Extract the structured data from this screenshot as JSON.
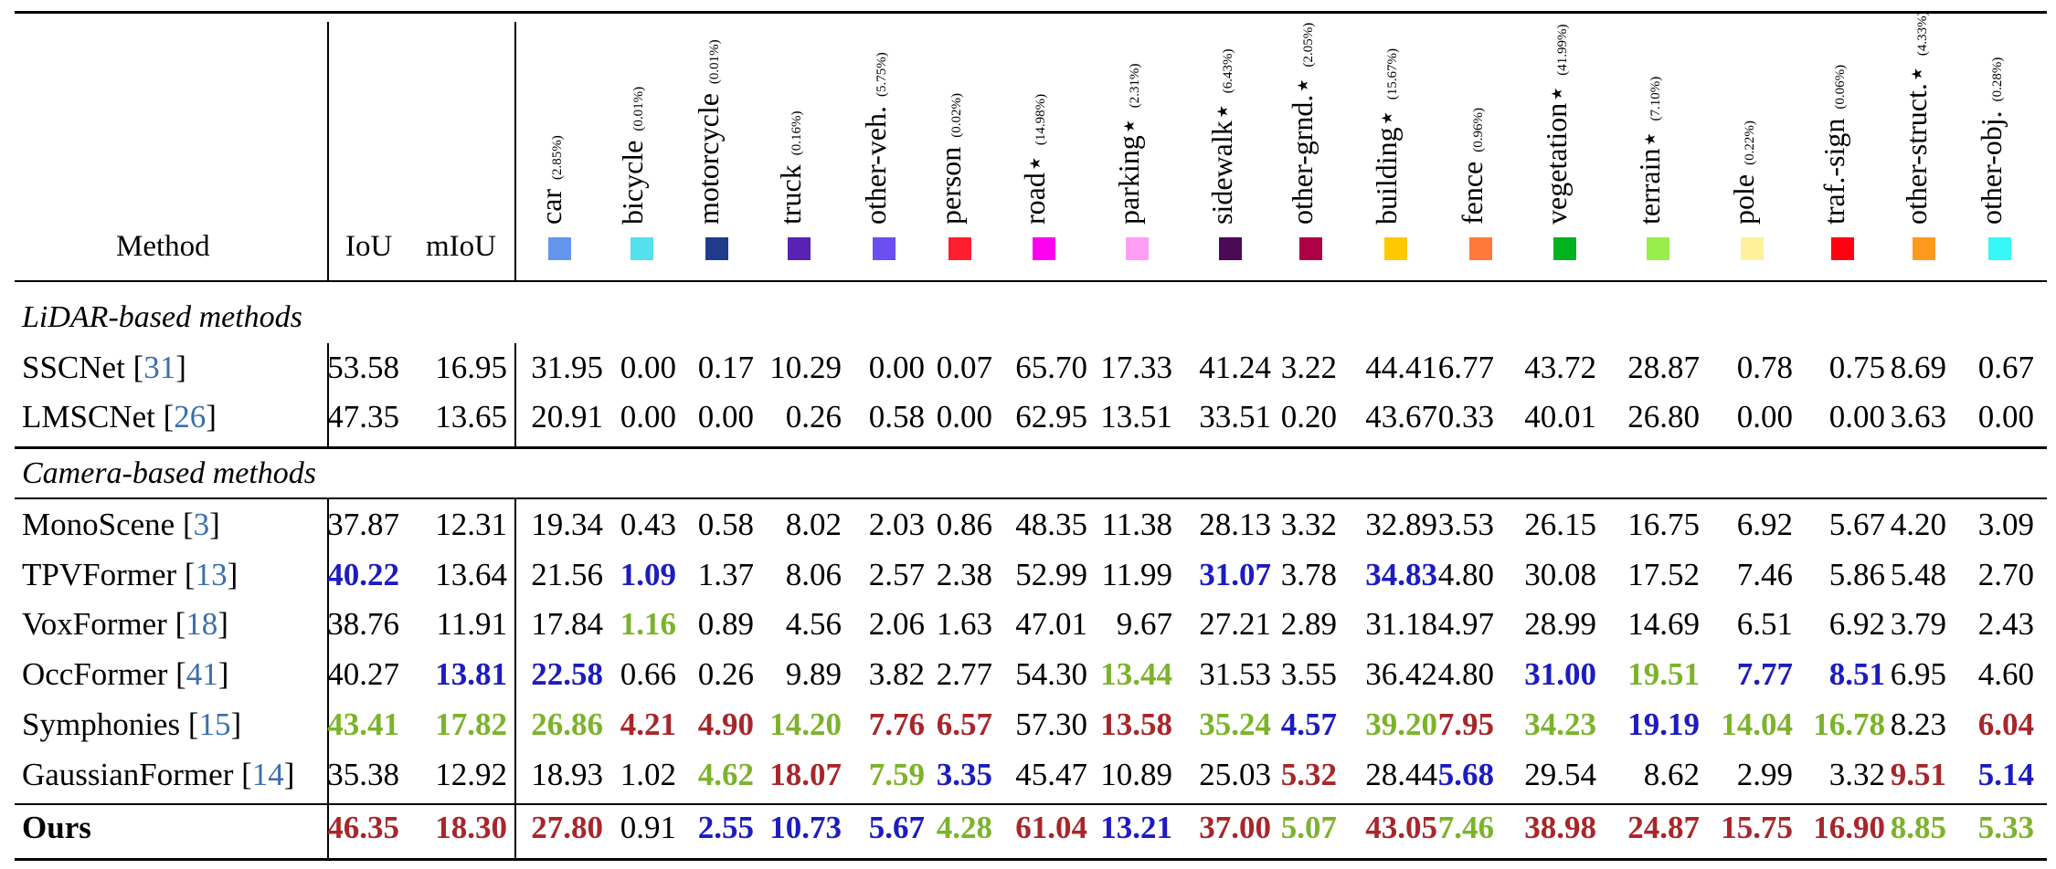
{
  "header": {
    "method": "Method",
    "iou": "IoU",
    "miou": "mIoU"
  },
  "classes": [
    {
      "name": "car",
      "freq": "(2.85%)",
      "color": "#6495ed"
    },
    {
      "name": "bicycle",
      "freq": "(0.01%)",
      "color": "#55e0ee"
    },
    {
      "name": "motorcycle",
      "freq": "(0.01%)",
      "color": "#1f3c8c"
    },
    {
      "name": "truck",
      "freq": "(0.16%)",
      "color": "#5a22b4"
    },
    {
      "name": "other-veh.",
      "freq": "(5.75%)",
      "color": "#6a4ef0"
    },
    {
      "name": "person",
      "freq": "(0.02%)",
      "color": "#ff1e2e"
    },
    {
      "name": "road⋆",
      "freq": "(14.98%)",
      "color": "#ff00f0"
    },
    {
      "name": "parking⋆",
      "freq": "(2.31%)",
      "color": "#ff9ef4"
    },
    {
      "name": "sidewalk⋆",
      "freq": "(6.43%)",
      "color": "#4b0a55"
    },
    {
      "name": "other-grnd.⋆",
      "freq": "(2.05%)",
      "color": "#ae0044"
    },
    {
      "name": "building⋆",
      "freq": "(15.67%)",
      "color": "#ffc800"
    },
    {
      "name": "fence",
      "freq": "(0.96%)",
      "color": "#ff7a3a"
    },
    {
      "name": "vegetation⋆",
      "freq": "(41.99%)",
      "color": "#00b21e"
    },
    {
      "name": "terrain⋆",
      "freq": "(7.10%)",
      "color": "#97ee4c"
    },
    {
      "name": "pole",
      "freq": "(0.22%)",
      "color": "#fff09a"
    },
    {
      "name": "traf.-sign",
      "freq": "(0.06%)",
      "color": "#ff0010"
    },
    {
      "name": "other-struct.⋆",
      "freq": "(4.33%)",
      "color": "#ff9a1e"
    },
    {
      "name": "other-obj.",
      "freq": "(0.28%)",
      "color": "#36f8f6"
    }
  ],
  "sections": [
    {
      "title": "LiDAR-based methods",
      "rows": [
        {
          "name": "SSCNet",
          "ref": "31",
          "bold": false,
          "values": [
            "53.58",
            "16.95",
            "31.95",
            "0.00",
            "0.17",
            "10.29",
            "0.00",
            "0.07",
            "65.70",
            "17.33",
            "41.24",
            "3.22",
            "44.41",
            "6.77",
            "43.72",
            "28.87",
            "0.78",
            "0.75",
            "8.69",
            "0.67"
          ],
          "ranks": [
            "",
            "",
            "",
            "",
            "",
            "",
            "",
            "",
            "",
            "",
            "",
            "",
            "",
            "",
            "",
            "",
            "",
            "",
            "",
            ""
          ]
        },
        {
          "name": "LMSCNet",
          "ref": "26",
          "bold": false,
          "values": [
            "47.35",
            "13.65",
            "20.91",
            "0.00",
            "0.00",
            "0.26",
            "0.58",
            "0.00",
            "62.95",
            "13.51",
            "33.51",
            "0.20",
            "43.67",
            "0.33",
            "40.01",
            "26.80",
            "0.00",
            "0.00",
            "3.63",
            "0.00"
          ],
          "ranks": [
            "",
            "",
            "",
            "",
            "",
            "",
            "",
            "",
            "",
            "",
            "",
            "",
            "",
            "",
            "",
            "",
            "",
            "",
            "",
            ""
          ]
        }
      ]
    },
    {
      "title": "Camera-based methods",
      "rows": [
        {
          "name": "MonoScene",
          "ref": "3",
          "bold": false,
          "values": [
            "37.87",
            "12.31",
            "19.34",
            "0.43",
            "0.58",
            "8.02",
            "2.03",
            "0.86",
            "48.35",
            "11.38",
            "28.13",
            "3.32",
            "32.89",
            "3.53",
            "26.15",
            "16.75",
            "6.92",
            "5.67",
            "4.20",
            "3.09"
          ],
          "ranks": [
            "",
            "",
            "",
            "",
            "",
            "",
            "",
            "",
            "",
            "",
            "",
            "",
            "",
            "",
            "",
            "",
            "",
            "",
            "",
            ""
          ]
        },
        {
          "name": "TPVFormer",
          "ref": "13",
          "bold": false,
          "values": [
            "40.22",
            "13.64",
            "21.56",
            "1.09",
            "1.37",
            "8.06",
            "2.57",
            "2.38",
            "52.99",
            "11.99",
            "31.07",
            "3.78",
            "34.83",
            "4.80",
            "30.08",
            "17.52",
            "7.46",
            "5.86",
            "5.48",
            "2.70"
          ],
          "ranks": [
            "blue",
            "",
            "",
            "blue",
            "",
            "",
            "",
            "",
            "",
            "",
            "blue",
            "",
            "blue",
            "",
            "",
            "",
            "",
            "",
            "",
            ""
          ]
        },
        {
          "name": "VoxFormer",
          "ref": "18",
          "bold": false,
          "values": [
            "38.76",
            "11.91",
            "17.84",
            "1.16",
            "0.89",
            "4.56",
            "2.06",
            "1.63",
            "47.01",
            "9.67",
            "27.21",
            "2.89",
            "31.18",
            "4.97",
            "28.99",
            "14.69",
            "6.51",
            "6.92",
            "3.79",
            "2.43"
          ],
          "ranks": [
            "",
            "",
            "",
            "green",
            "",
            "",
            "",
            "",
            "",
            "",
            "",
            "",
            "",
            "",
            "",
            "",
            "",
            "",
            "",
            ""
          ]
        },
        {
          "name": "OccFormer",
          "ref": "41",
          "bold": false,
          "values": [
            "40.27",
            "13.81",
            "22.58",
            "0.66",
            "0.26",
            "9.89",
            "3.82",
            "2.77",
            "54.30",
            "13.44",
            "31.53",
            "3.55",
            "36.42",
            "4.80",
            "31.00",
            "19.51",
            "7.77",
            "8.51",
            "6.95",
            "4.60"
          ],
          "ranks": [
            "",
            "blue",
            "blue",
            "",
            "",
            "",
            "",
            "",
            "",
            "green",
            "",
            "",
            "",
            "",
            "blue",
            "green",
            "blue",
            "blue",
            "",
            ""
          ]
        },
        {
          "name": "Symphonies",
          "ref": "15",
          "bold": false,
          "values": [
            "43.41",
            "17.82",
            "26.86",
            "4.21",
            "4.90",
            "14.20",
            "7.76",
            "6.57",
            "57.30",
            "13.58",
            "35.24",
            "4.57",
            "39.20",
            "7.95",
            "34.23",
            "19.19",
            "14.04",
            "16.78",
            "8.23",
            "6.04"
          ],
          "ranks": [
            "green",
            "green",
            "green",
            "red",
            "red",
            "green",
            "red",
            "red",
            "",
            "red",
            "green",
            "blue",
            "green",
            "red",
            "green",
            "blue",
            "green",
            "green",
            "",
            "red"
          ]
        },
        {
          "name": "GaussianFormer",
          "ref": "14",
          "bold": false,
          "values": [
            "35.38",
            "12.92",
            "18.93",
            "1.02",
            "4.62",
            "18.07",
            "7.59",
            "3.35",
            "45.47",
            "10.89",
            "25.03",
            "5.32",
            "28.44",
            "5.68",
            "29.54",
            "8.62",
            "2.99",
            "3.32",
            "9.51",
            "5.14"
          ],
          "ranks": [
            "",
            "",
            "",
            "",
            "green",
            "red",
            "green",
            "blue",
            "",
            "",
            "",
            "red",
            "",
            "blue",
            "",
            "",
            "",
            "",
            "red",
            "blue"
          ]
        }
      ]
    },
    {
      "title": "",
      "rows": [
        {
          "name": "Ours",
          "ref": "",
          "bold": true,
          "values": [
            "46.35",
            "18.30",
            "27.80",
            "0.91",
            "2.55",
            "10.73",
            "5.67",
            "4.28",
            "61.04",
            "13.21",
            "37.00",
            "5.07",
            "43.05",
            "7.46",
            "38.98",
            "24.87",
            "15.75",
            "16.90",
            "8.85",
            "5.33"
          ],
          "ranks": [
            "red",
            "red",
            "red",
            "",
            "blue",
            "blue",
            "blue",
            "green",
            "red",
            "blue",
            "red",
            "green",
            "red",
            "green",
            "red",
            "red",
            "red",
            "red",
            "green",
            "green"
          ]
        }
      ]
    }
  ]
}
